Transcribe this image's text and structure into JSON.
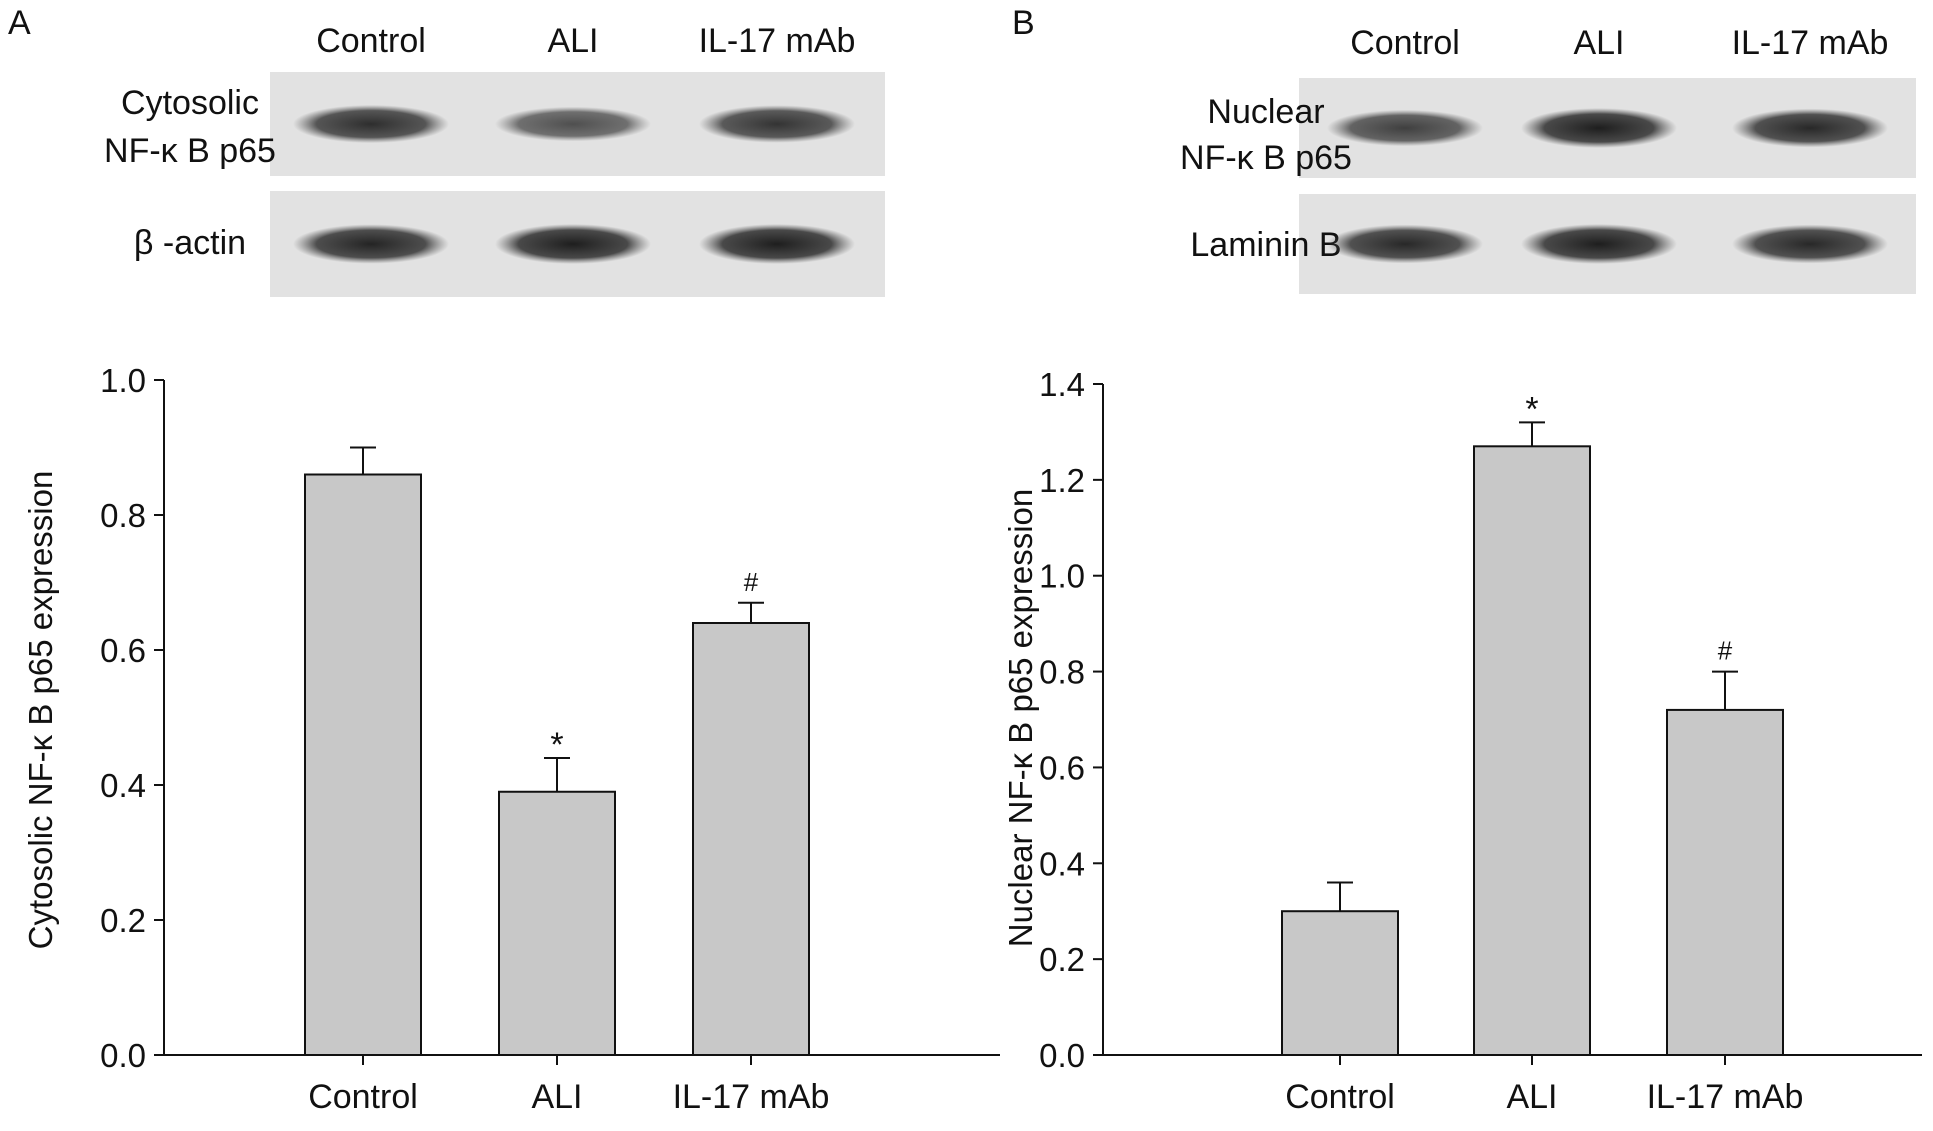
{
  "panels": [
    {
      "letter": "A",
      "blot": {
        "lanes": [
          "Control",
          "ALI",
          "IL-17 mAb"
        ],
        "rows": [
          {
            "label_lines": [
              "Cytosolic",
              "NF-κ B p65"
            ],
            "intensity": [
              0.85,
              0.55,
              0.8
            ]
          },
          {
            "label_lines": [
              "β -actin"
            ],
            "intensity": [
              0.95,
              1.0,
              1.0
            ]
          }
        ]
      }
    },
    {
      "letter": "B",
      "blot": {
        "lanes": [
          "Control",
          "ALI",
          "IL-17 mAb"
        ],
        "rows": [
          {
            "label_lines": [
              "Nuclear",
              "NF-κ B p65"
            ],
            "intensity": [
              0.7,
              1.0,
              0.9
            ]
          },
          {
            "label_lines": [
              "Laminin B"
            ],
            "intensity": [
              0.9,
              1.0,
              0.9
            ]
          }
        ]
      }
    }
  ],
  "chart_data": [
    {
      "type": "bar",
      "categories": [
        "Control",
        "ALI",
        "IL-17 mAb"
      ],
      "values": [
        0.86,
        0.39,
        0.64
      ],
      "errors": [
        0.04,
        0.05,
        0.03
      ],
      "annotations": [
        "",
        "*",
        "#"
      ],
      "ylabel": "Cytosolic NF-κ B p65 expression",
      "xlabel": "",
      "ylim": [
        0,
        1.0
      ],
      "yticks": [
        "0.0",
        "0.2",
        "0.4",
        "0.6",
        "0.8",
        "1.0"
      ],
      "bar_color": "#c8c8c8"
    },
    {
      "type": "bar",
      "categories": [
        "Control",
        "ALI",
        "IL-17 mAb"
      ],
      "values": [
        0.3,
        1.27,
        0.72
      ],
      "errors": [
        0.06,
        0.05,
        0.08
      ],
      "annotations": [
        "",
        "*",
        "#"
      ],
      "ylabel": "Nuclear NF-κ B p65 expression",
      "xlabel": "",
      "ylim": [
        0,
        1.4
      ],
      "yticks": [
        "0.0",
        "0.2",
        "0.4",
        "0.6",
        "0.8",
        "1.0",
        "1.2",
        "1.4"
      ],
      "bar_color": "#c8c8c8"
    }
  ]
}
